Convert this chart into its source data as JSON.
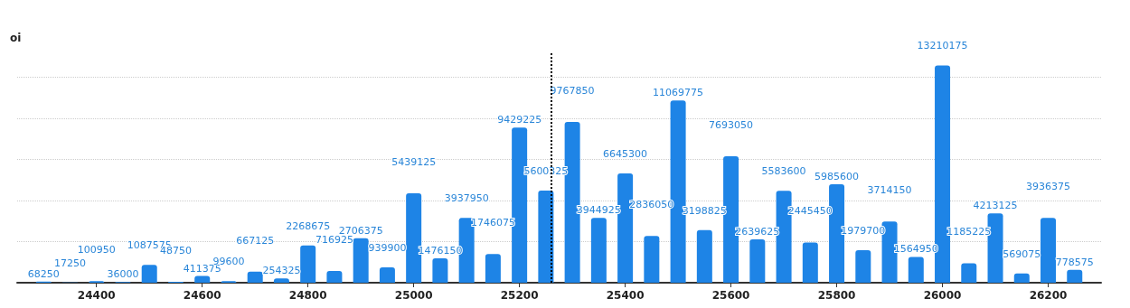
{
  "chart_data": {
    "type": "bar",
    "ylabel": "oi",
    "x": [
      24300,
      24350,
      24400,
      24450,
      24500,
      24550,
      24600,
      24650,
      24700,
      24750,
      24800,
      24850,
      24900,
      24950,
      25000,
      25050,
      25100,
      25150,
      25200,
      25250,
      25300,
      25350,
      25400,
      25450,
      25500,
      25550,
      25600,
      25650,
      25700,
      25750,
      25800,
      25850,
      25900,
      25950,
      26000,
      26050,
      26100,
      26150,
      26200,
      26250
    ],
    "values": [
      68250,
      17250,
      100950,
      36000,
      1087575,
      48750,
      411375,
      99600,
      667125,
      254325,
      2268675,
      716925,
      2706375,
      939900,
      5439125,
      1476150,
      3937950,
      1746075,
      9429225,
      5600325,
      9767850,
      3944925,
      6645300,
      2836050,
      11069775,
      3198825,
      7693050,
      2639625,
      5583600,
      2445450,
      5985600,
      1979700,
      3714150,
      1564950,
      13210175,
      1185225,
      4213125,
      569075,
      3936375,
      778575
    ],
    "color": "#1e84e6",
    "data_labels": true,
    "xlim": [
      24250,
      26300
    ],
    "xticks": [
      24400,
      24600,
      24800,
      25000,
      25200,
      25400,
      25600,
      25800,
      26000,
      26200
    ],
    "ylim": [
      0,
      14000000
    ],
    "yticks": [
      {
        "value": 0,
        "label": null
      },
      {
        "value": 2500000,
        "label": null
      },
      {
        "value": 5000000,
        "label": null
      },
      {
        "value": 7500000,
        "label": null
      },
      {
        "value": 10000000,
        "label": null
      },
      {
        "value": 12500000,
        "label": null
      }
    ],
    "tick_labels": "x",
    "grid": "y",
    "ref_lines": [
      {
        "axis": "x",
        "value": 25260,
        "label": null,
        "color": "#000000",
        "line_style": "dotted"
      }
    ]
  }
}
